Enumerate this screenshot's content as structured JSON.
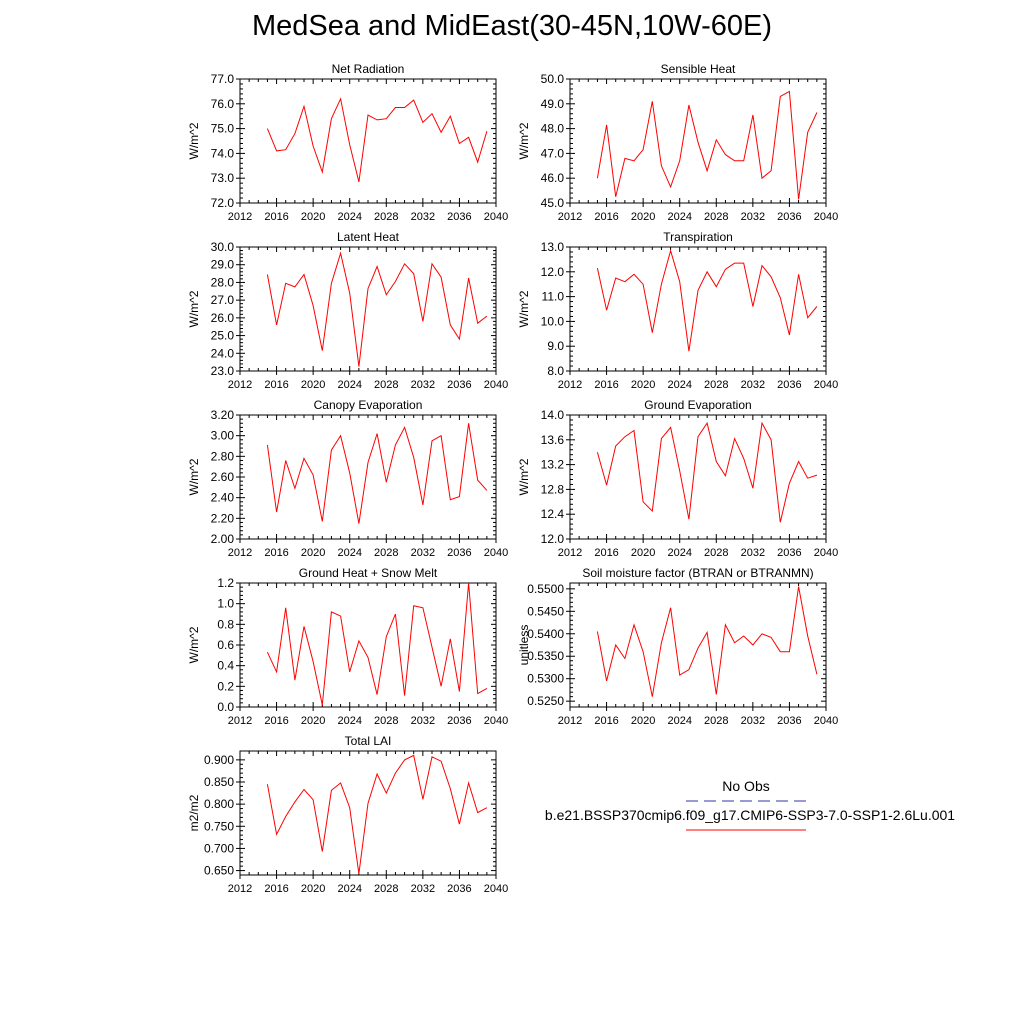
{
  "title": "MedSea and MidEast(30-45N,10W-60E)",
  "legend": {
    "obs_label": "No Obs",
    "obs_color": "#3333aa",
    "case_label": "b.e21.BSSP370cmip6.f09_g17.CMIP6-SSP3-7.0-SSP1-2.6Lu.001",
    "case_color": "#ff0000"
  },
  "line_color": "#ff0000",
  "x_tick_labels": [
    "2012",
    "2016",
    "2020",
    "2024",
    "2028",
    "2032",
    "2036",
    "2040"
  ],
  "chart_data": [
    {
      "type": "line",
      "title": "Net Radiation",
      "ylabel": "W/m^2",
      "xlim": [
        2012,
        2040
      ],
      "ylim": [
        72.0,
        77.0
      ],
      "yticks": [
        "72.0",
        "73.0",
        "74.0",
        "75.0",
        "76.0",
        "77.0"
      ],
      "x": [
        2015,
        2016,
        2017,
        2018,
        2019,
        2020,
        2021,
        2022,
        2023,
        2024,
        2025,
        2026,
        2027,
        2028,
        2029,
        2030,
        2031,
        2032,
        2033,
        2034,
        2035,
        2036,
        2037,
        2038,
        2039
      ],
      "values": [
        75.0,
        74.1,
        74.15,
        74.8,
        75.9,
        74.3,
        73.25,
        75.4,
        76.2,
        74.35,
        72.85,
        75.55,
        75.35,
        75.4,
        75.85,
        75.85,
        76.15,
        75.25,
        75.6,
        74.85,
        75.5,
        74.4,
        74.65,
        73.65,
        74.9
      ]
    },
    {
      "type": "line",
      "title": "Sensible Heat",
      "ylabel": "W/m^2",
      "xlim": [
        2012,
        2040
      ],
      "ylim": [
        45.0,
        50.0
      ],
      "yticks": [
        "45.0",
        "46.0",
        "47.0",
        "48.0",
        "49.0",
        "50.0"
      ],
      "x": [
        2015,
        2016,
        2017,
        2018,
        2019,
        2020,
        2021,
        2022,
        2023,
        2024,
        2025,
        2026,
        2027,
        2028,
        2029,
        2030,
        2031,
        2032,
        2033,
        2034,
        2035,
        2036,
        2037,
        2038,
        2039
      ],
      "values": [
        46.0,
        48.15,
        45.25,
        46.8,
        46.7,
        47.15,
        49.1,
        46.5,
        45.65,
        46.7,
        48.95,
        47.45,
        46.3,
        47.55,
        46.95,
        46.7,
        46.7,
        48.55,
        46.0,
        46.3,
        49.3,
        49.5,
        45.15,
        47.85,
        48.65
      ]
    },
    {
      "type": "line",
      "title": "Latent Heat",
      "ylabel": "W/m^2",
      "xlim": [
        2012,
        2040
      ],
      "ylim": [
        23.0,
        30.0
      ],
      "yticks": [
        "23.0",
        "24.0",
        "25.0",
        "26.0",
        "27.0",
        "28.0",
        "29.0",
        "30.0"
      ],
      "x": [
        2015,
        2016,
        2017,
        2018,
        2019,
        2020,
        2021,
        2022,
        2023,
        2024,
        2025,
        2026,
        2027,
        2028,
        2029,
        2030,
        2031,
        2032,
        2033,
        2034,
        2035,
        2036,
        2037,
        2038,
        2039
      ],
      "values": [
        28.45,
        25.6,
        27.95,
        27.75,
        28.45,
        26.7,
        24.15,
        27.95,
        29.65,
        27.4,
        23.25,
        27.65,
        28.9,
        27.3,
        28.05,
        29.05,
        28.5,
        25.8,
        29.05,
        28.3,
        25.6,
        24.8,
        28.25,
        25.7,
        26.1
      ]
    },
    {
      "type": "line",
      "title": "Transpiration",
      "ylabel": "W/m^2",
      "xlim": [
        2012,
        2040
      ],
      "ylim": [
        8.0,
        13.0
      ],
      "yticks": [
        "8.0",
        "9.0",
        "10.0",
        "11.0",
        "12.0",
        "13.0"
      ],
      "x": [
        2015,
        2016,
        2017,
        2018,
        2019,
        2020,
        2021,
        2022,
        2023,
        2024,
        2025,
        2026,
        2027,
        2028,
        2029,
        2030,
        2031,
        2032,
        2033,
        2034,
        2035,
        2036,
        2037,
        2038,
        2039
      ],
      "values": [
        12.15,
        10.45,
        11.75,
        11.6,
        11.9,
        11.5,
        9.55,
        11.5,
        12.85,
        11.6,
        8.8,
        11.25,
        12.0,
        11.4,
        12.1,
        12.35,
        12.35,
        10.6,
        12.25,
        11.8,
        10.95,
        9.45,
        11.9,
        10.15,
        10.6
      ]
    },
    {
      "type": "line",
      "title": "Canopy Evaporation",
      "ylabel": "W/m^2",
      "xlim": [
        2012,
        2040
      ],
      "ylim": [
        2.0,
        3.2
      ],
      "yticks": [
        "2.00",
        "2.20",
        "2.40",
        "2.60",
        "2.80",
        "3.00",
        "3.20"
      ],
      "x": [
        2015,
        2016,
        2017,
        2018,
        2019,
        2020,
        2021,
        2022,
        2023,
        2024,
        2025,
        2026,
        2027,
        2028,
        2029,
        2030,
        2031,
        2032,
        2033,
        2034,
        2035,
        2036,
        2037,
        2038,
        2039
      ],
      "values": [
        2.91,
        2.26,
        2.76,
        2.49,
        2.78,
        2.62,
        2.17,
        2.86,
        3.0,
        2.64,
        2.15,
        2.74,
        3.02,
        2.55,
        2.91,
        3.08,
        2.79,
        2.33,
        2.95,
        3.0,
        2.38,
        2.41,
        3.12,
        2.57,
        2.47
      ]
    },
    {
      "type": "line",
      "title": "Ground Evaporation",
      "ylabel": "W/m^2",
      "xlim": [
        2012,
        2040
      ],
      "ylim": [
        12.0,
        14.0
      ],
      "yticks": [
        "12.0",
        "12.4",
        "12.8",
        "13.2",
        "13.6",
        "14.0"
      ],
      "x": [
        2015,
        2016,
        2017,
        2018,
        2019,
        2020,
        2021,
        2022,
        2023,
        2024,
        2025,
        2026,
        2027,
        2028,
        2029,
        2030,
        2031,
        2032,
        2033,
        2034,
        2035,
        2036,
        2037,
        2038,
        2039
      ],
      "values": [
        13.4,
        12.87,
        13.5,
        13.65,
        13.75,
        12.6,
        12.45,
        13.62,
        13.8,
        13.1,
        12.32,
        13.65,
        13.87,
        13.25,
        13.02,
        13.62,
        13.3,
        12.82,
        13.87,
        13.6,
        12.27,
        12.9,
        13.25,
        12.98,
        13.03
      ]
    },
    {
      "type": "line",
      "title": "Ground Heat + Snow Melt",
      "ylabel": "W/m^2",
      "xlim": [
        2012,
        2040
      ],
      "ylim": [
        0.0,
        1.2
      ],
      "yticks": [
        "0.0",
        "0.2",
        "0.4",
        "0.6",
        "0.8",
        "1.0",
        "1.2"
      ],
      "x": [
        2015,
        2016,
        2017,
        2018,
        2019,
        2020,
        2021,
        2022,
        2023,
        2024,
        2025,
        2026,
        2027,
        2028,
        2029,
        2030,
        2031,
        2032,
        2033,
        2034,
        2035,
        2036,
        2037,
        2038,
        2039
      ],
      "values": [
        0.53,
        0.34,
        0.96,
        0.26,
        0.78,
        0.44,
        0.02,
        0.92,
        0.88,
        0.34,
        0.64,
        0.48,
        0.12,
        0.68,
        0.9,
        0.11,
        0.98,
        0.96,
        0.58,
        0.2,
        0.66,
        0.15,
        1.2,
        0.13,
        0.18
      ]
    },
    {
      "type": "line",
      "title": "Soil moisture factor (BTRAN or BTRANMN)",
      "ylabel": "unitless",
      "xlim": [
        2012,
        2040
      ],
      "ylim": [
        0.5237,
        0.5513
      ],
      "yticks": [
        "0.5250",
        "0.5300",
        "0.5350",
        "0.5400",
        "0.5450",
        "0.5500"
      ],
      "x": [
        2015,
        2016,
        2017,
        2018,
        2019,
        2020,
        2021,
        2022,
        2023,
        2024,
        2025,
        2026,
        2027,
        2028,
        2029,
        2030,
        2031,
        2032,
        2033,
        2034,
        2035,
        2036,
        2037,
        2038,
        2039
      ],
      "values": [
        0.5405,
        0.5295,
        0.5375,
        0.5345,
        0.542,
        0.536,
        0.526,
        0.538,
        0.5458,
        0.5308,
        0.532,
        0.5368,
        0.5403,
        0.5265,
        0.542,
        0.538,
        0.5395,
        0.5375,
        0.54,
        0.5392,
        0.536,
        0.536,
        0.5505,
        0.5395,
        0.531
      ]
    },
    {
      "type": "line",
      "title": "Total LAI",
      "ylabel": "m2/m2",
      "xlim": [
        2012,
        2040
      ],
      "ylim": [
        0.64,
        0.92
      ],
      "yticks": [
        "0.650",
        "0.700",
        "0.750",
        "0.800",
        "0.850",
        "0.900"
      ],
      "x": [
        2015,
        2016,
        2017,
        2018,
        2019,
        2020,
        2021,
        2022,
        2023,
        2024,
        2025,
        2026,
        2027,
        2028,
        2029,
        2030,
        2031,
        2032,
        2033,
        2034,
        2035,
        2036,
        2037,
        2038,
        2039
      ],
      "values": [
        0.845,
        0.732,
        0.772,
        0.805,
        0.833,
        0.81,
        0.693,
        0.831,
        0.848,
        0.792,
        0.643,
        0.802,
        0.868,
        0.825,
        0.87,
        0.9,
        0.91,
        0.811,
        0.907,
        0.897,
        0.835,
        0.755,
        0.848,
        0.781,
        0.792
      ]
    }
  ]
}
